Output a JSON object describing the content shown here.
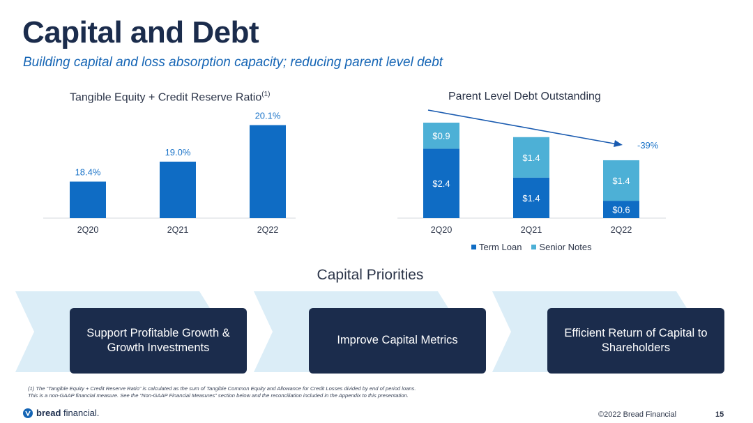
{
  "header": {
    "title": "Capital and Debt",
    "subtitle": "Building capital and loss absorption capacity; reducing parent level debt"
  },
  "colors": {
    "navy": "#1b2c4c",
    "term_loan": "#0f6cc4",
    "senior_notes": "#4db0d6",
    "chevron": "#dbedf7"
  },
  "chart_data": [
    {
      "type": "bar",
      "title": "Tangible Equity + Credit Reserve Ratio",
      "title_footnote_marker": "(1)",
      "categories": [
        "2Q20",
        "2Q21",
        "2Q22"
      ],
      "values": [
        18.4,
        19.0,
        20.1
      ],
      "value_labels": [
        "18.4%",
        "19.0%",
        "20.1%"
      ],
      "unit": "%",
      "ylim": [
        17.3,
        20.3
      ],
      "grid": false,
      "legend": "none"
    },
    {
      "type": "bar",
      "stacked": true,
      "title": "Parent Level Debt Outstanding",
      "categories": [
        "2Q20",
        "2Q21",
        "2Q22"
      ],
      "series": [
        {
          "name": "Term Loan",
          "values": [
            2.4,
            1.4,
            0.6
          ],
          "labels": [
            "$2.4",
            "$1.4",
            "$0.6"
          ]
        },
        {
          "name": "Senior Notes",
          "values": [
            0.9,
            1.4,
            1.4
          ],
          "labels": [
            "$0.9",
            "$1.4",
            "$1.4"
          ]
        }
      ],
      "ylim": [
        0,
        3.3
      ],
      "annotation": "-39%",
      "grid": false,
      "legend": "bottom"
    }
  ],
  "priorities": {
    "title": "Capital Priorities",
    "items": [
      "Support Profitable Growth & Growth Investments",
      "Improve Capital Metrics",
      "Efficient Return of Capital to Shareholders"
    ]
  },
  "footnote": {
    "line1": "(1) The “Tangible Equity + Credit Reserve Ratio” is calculated as the sum of Tangible Common Equity and Allowance for Credit Losses divided by end of period loans.",
    "line2": "This is a non-GAAP financial measure. See the “Non-GAAP Financial Measures” section below and the reconciliation included in the Appendix to this presentation."
  },
  "footer": {
    "logo_bold": "bread",
    "logo_rest": "financial.",
    "copyright": "©2022 Bread Financial",
    "page_number": "15"
  }
}
